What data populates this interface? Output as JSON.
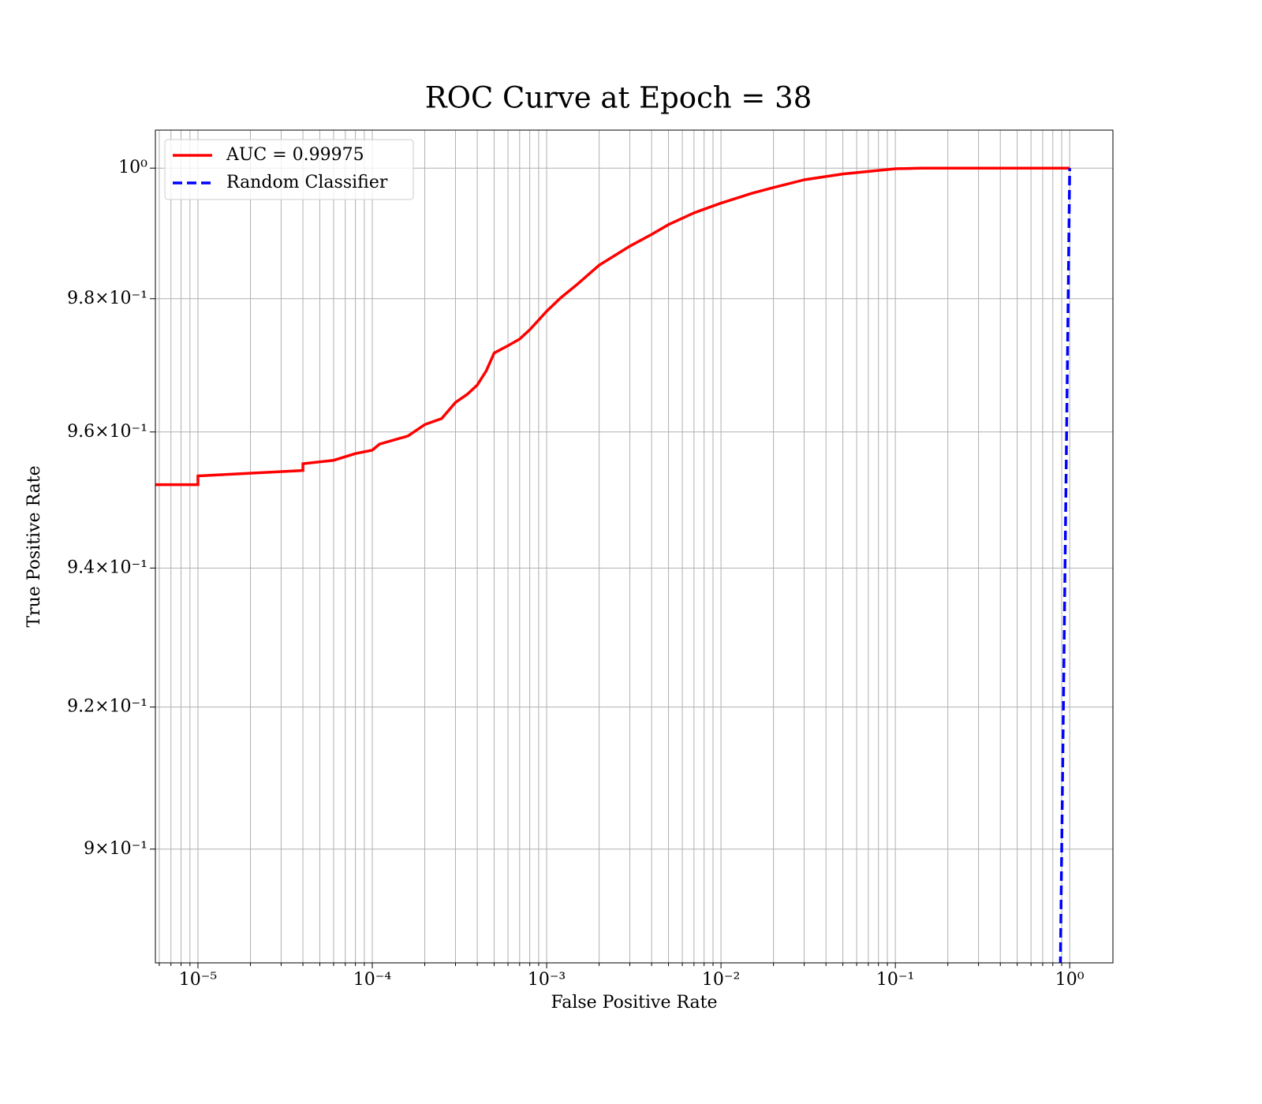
{
  "chart_data": {
    "type": "line",
    "title": "ROC Curve at Epoch = 38",
    "x_label": "False Positive Rate",
    "y_label": "True Positive Rate",
    "xscale": "log",
    "yscale": "log",
    "grid": true,
    "legend": "upper left",
    "xlim": [
      5.7e-06,
      1.77
    ],
    "ylim": [
      0.8843,
      1.0059
    ],
    "xticks": [
      {
        "value": 1e-05,
        "label": "10⁻⁵"
      },
      {
        "value": 0.0001,
        "label": "10⁻⁴"
      },
      {
        "value": 0.001,
        "label": "10⁻³"
      },
      {
        "value": 0.01,
        "label": "10⁻²"
      },
      {
        "value": 0.1,
        "label": "10⁻¹"
      },
      {
        "value": 1,
        "label": "10⁰"
      }
    ],
    "x_minor_ticks": [
      6e-06,
      7e-06,
      8e-06,
      9e-06,
      2e-05,
      3e-05,
      4e-05,
      5e-05,
      6e-05,
      7e-05,
      8e-05,
      9e-05,
      0.0002,
      0.0003,
      0.0004,
      0.0005,
      0.0006,
      0.0007,
      0.0008,
      0.0009,
      0.002,
      0.003,
      0.004,
      0.005,
      0.006,
      0.007,
      0.008,
      0.009,
      0.02,
      0.03,
      0.04,
      0.05,
      0.06,
      0.07,
      0.08,
      0.09,
      0.2,
      0.3,
      0.4,
      0.5,
      0.6,
      0.7,
      0.8,
      0.9
    ],
    "yticks": [
      {
        "value": 0.9,
        "label": "9×10⁻¹"
      },
      {
        "value": 0.92,
        "label": "9.2×10⁻¹"
      },
      {
        "value": 0.94,
        "label": "9.4×10⁻¹"
      },
      {
        "value": 0.96,
        "label": "9.6×10⁻¹"
      },
      {
        "value": 0.98,
        "label": "9.8×10⁻¹"
      },
      {
        "value": 1,
        "label": "10⁰"
      }
    ],
    "series": [
      {
        "name": "AUC = 0.99975",
        "color": "#ff0000",
        "dash": false,
        "x": [
          5e-06,
          1e-05,
          1e-05,
          4e-05,
          4e-05,
          6e-05,
          8e-05,
          0.0001,
          0.00011,
          0.00016,
          0.0002,
          0.00025,
          0.0003,
          0.00035,
          0.0004,
          0.00045,
          0.0005,
          0.0006,
          0.0007,
          0.0008,
          0.001,
          0.0012,
          0.0015,
          0.002,
          0.003,
          0.004,
          0.005,
          0.007,
          0.01,
          0.015,
          0.02,
          0.03,
          0.05,
          0.1,
          0.14,
          1
        ],
        "values": [
          0.9522,
          0.9522,
          0.9535,
          0.9543,
          0.9553,
          0.9558,
          0.9568,
          0.9573,
          0.9582,
          0.9594,
          0.9611,
          0.962,
          0.9644,
          0.9656,
          0.967,
          0.9691,
          0.9718,
          0.9729,
          0.9739,
          0.9753,
          0.9781,
          0.9801,
          0.9822,
          0.9851,
          0.988,
          0.9898,
          0.9913,
          0.9931,
          0.9946,
          0.9961,
          0.997,
          0.9982,
          0.9991,
          0.9999,
          1,
          1
        ]
      },
      {
        "name": "Random Classifier",
        "color": "#0000ff",
        "dash": true,
        "x": [
          0.88,
          0.9,
          0.95,
          1
        ],
        "values": [
          0.88,
          0.9,
          0.95,
          1
        ]
      }
    ]
  }
}
